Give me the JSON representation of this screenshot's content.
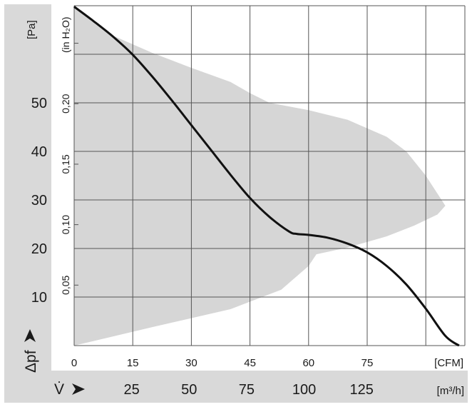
{
  "colors": {
    "sidebar": "#d9d9d9",
    "region": "#d6d6d6",
    "curve": "#111111",
    "grid": "#555555"
  },
  "chart_data": {
    "type": "line",
    "title": "",
    "x_cfm_ticks": [
      "0",
      "15",
      "30",
      "45",
      "60",
      "75"
    ],
    "x_cfm_unit": "[CFM]",
    "x_m3h_ticks": [
      "25",
      "50",
      "75",
      "100",
      "125"
    ],
    "x_m3h_unit": "[m³/h]",
    "x_m3h_symbol": "V̇",
    "y_pa_ticks": [
      "10",
      "20",
      "30",
      "40",
      "50"
    ],
    "y_pa_unit": "[Pa]",
    "y_pa_symbol": "Δpf",
    "y_inh2o_ticks": [
      "0,05",
      "0,10",
      "0,15",
      "0,20"
    ],
    "y_inh2o_unit": "(in H₂O)",
    "xlim_cfm": [
      0,
      100
    ],
    "ylim_pa": [
      0,
      70
    ],
    "grid": true,
    "series": [
      {
        "x_cfm": [
          0,
          5,
          10,
          15,
          20,
          25,
          30,
          35,
          40,
          45,
          50,
          55,
          57,
          60,
          65,
          70,
          75,
          80,
          85,
          90,
          95,
          98.5
        ],
        "y_pa": [
          69.8,
          66.8,
          63.6,
          59.9,
          55.4,
          50.5,
          45.4,
          40.3,
          35.2,
          30.4,
          26.5,
          23.5,
          23.0,
          22.8,
          22.2,
          21.0,
          19.2,
          16.4,
          12.6,
          7.6,
          2.0,
          0.0
        ]
      }
    ],
    "operating_region": {
      "x_cfm": [
        0,
        20,
        40,
        53,
        60,
        62,
        70,
        80,
        87,
        93,
        95,
        90,
        85,
        80,
        70,
        60,
        50,
        45,
        40,
        30,
        20,
        10,
        5,
        0
      ],
      "y_pa": [
        0,
        3.8,
        7.5,
        11.5,
        16.4,
        18.8,
        20.2,
        22.5,
        24.7,
        27.0,
        28.8,
        35.0,
        40.0,
        43.0,
        46.5,
        48.5,
        50.0,
        52.0,
        54.3,
        57.2,
        60.3,
        63.8,
        66.5,
        69.7
      ]
    }
  }
}
